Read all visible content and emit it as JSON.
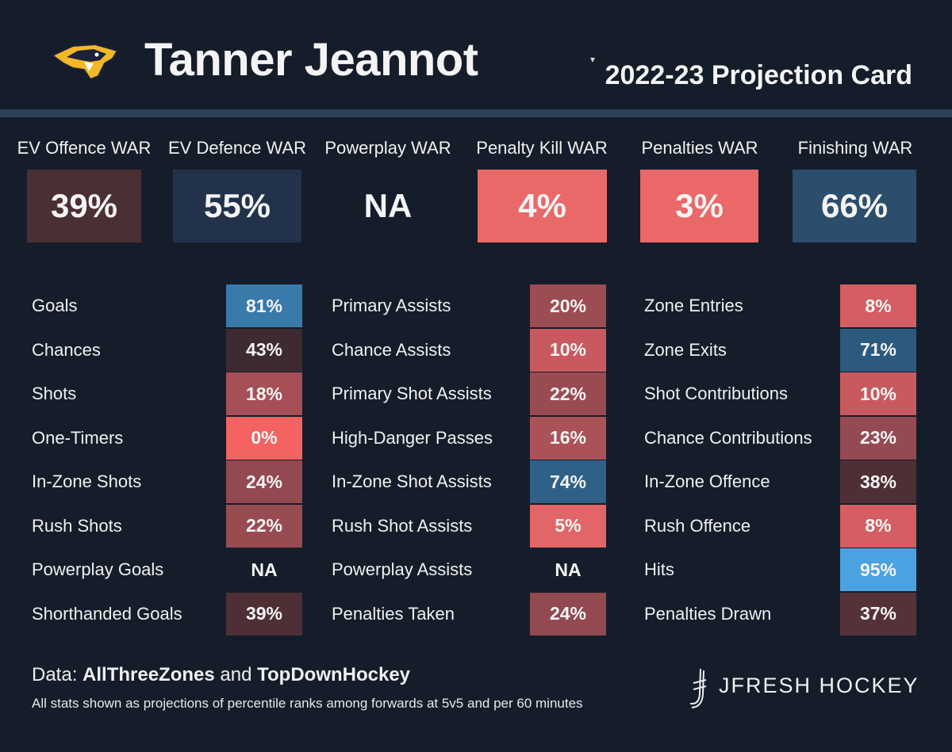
{
  "header": {
    "player_name": "Tanner Jeannot",
    "card_title": "2022-23 Projection Card",
    "caret": "▾"
  },
  "war": [
    {
      "label": "EV Offence WAR",
      "value": "39%",
      "color": "#4a2f34"
    },
    {
      "label": "EV Defence WAR",
      "value": "55%",
      "color": "#22324a"
    },
    {
      "label": "Powerplay WAR",
      "value": "NA",
      "color": "#151d2a"
    },
    {
      "label": "Penalty Kill WAR",
      "value": "4%",
      "color": "#e96969"
    },
    {
      "label": "Penalties WAR",
      "value": "3%",
      "color": "#ea6868"
    },
    {
      "label": "Finishing WAR",
      "value": "66%",
      "color": "#2c4e6c"
    }
  ],
  "stats": {
    "col1": [
      {
        "label": "Goals",
        "value": "81%",
        "color": "#3a7aab"
      },
      {
        "label": "Chances",
        "value": "43%",
        "color": "#3e2a31"
      },
      {
        "label": "Shots",
        "value": "18%",
        "color": "#a55057"
      },
      {
        "label": "One-Timers",
        "value": "0%",
        "color": "#f46262"
      },
      {
        "label": "In-Zone Shots",
        "value": "24%",
        "color": "#924950"
      },
      {
        "label": "Rush Shots",
        "value": "22%",
        "color": "#994b52"
      },
      {
        "label": "Powerplay Goals",
        "value": "NA",
        "color": "#151d2a"
      },
      {
        "label": "Shorthanded Goals",
        "value": "39%",
        "color": "#4e2f36"
      }
    ],
    "col2": [
      {
        "label": "Primary Assists",
        "value": "20%",
        "color": "#9c4c53"
      },
      {
        "label": "Chance Assists",
        "value": "10%",
        "color": "#c85a5f"
      },
      {
        "label": "Primary Shot Assists",
        "value": "22%",
        "color": "#994b52"
      },
      {
        "label": "High-Danger Passes",
        "value": "16%",
        "color": "#ab5258"
      },
      {
        "label": "In-Zone Shot Assists",
        "value": "74%",
        "color": "#2f6188"
      },
      {
        "label": "Rush Shot Assists",
        "value": "5%",
        "color": "#e26667"
      },
      {
        "label": "Powerplay Assists",
        "value": "NA",
        "color": "#151d2a"
      },
      {
        "label": "Penalties Taken",
        "value": "24%",
        "color": "#924950"
      }
    ],
    "col3": [
      {
        "label": "Zone Entries",
        "value": "8%",
        "color": "#d45e62"
      },
      {
        "label": "Zone Exits",
        "value": "71%",
        "color": "#2b5a7e"
      },
      {
        "label": "Shot Contributions",
        "value": "10%",
        "color": "#c85a5f"
      },
      {
        "label": "Chance Contributions",
        "value": "23%",
        "color": "#954a51"
      },
      {
        "label": "In-Zone Offence",
        "value": "38%",
        "color": "#4f2f36"
      },
      {
        "label": "Rush Offence",
        "value": "8%",
        "color": "#d45e62"
      },
      {
        "label": "Hits",
        "value": "95%",
        "color": "#4aa3e0"
      },
      {
        "label": "Penalties Drawn",
        "value": "37%",
        "color": "#55323a"
      }
    ]
  },
  "footer": {
    "data_prefix": "Data: ",
    "source1": "AllThreeZones",
    "and": " and ",
    "source2": "TopDownHockey",
    "note": "All stats shown as projections of percentile ranks among forwards at 5v5 and per 60 minutes",
    "brand": "JFRESH HOCKEY"
  }
}
